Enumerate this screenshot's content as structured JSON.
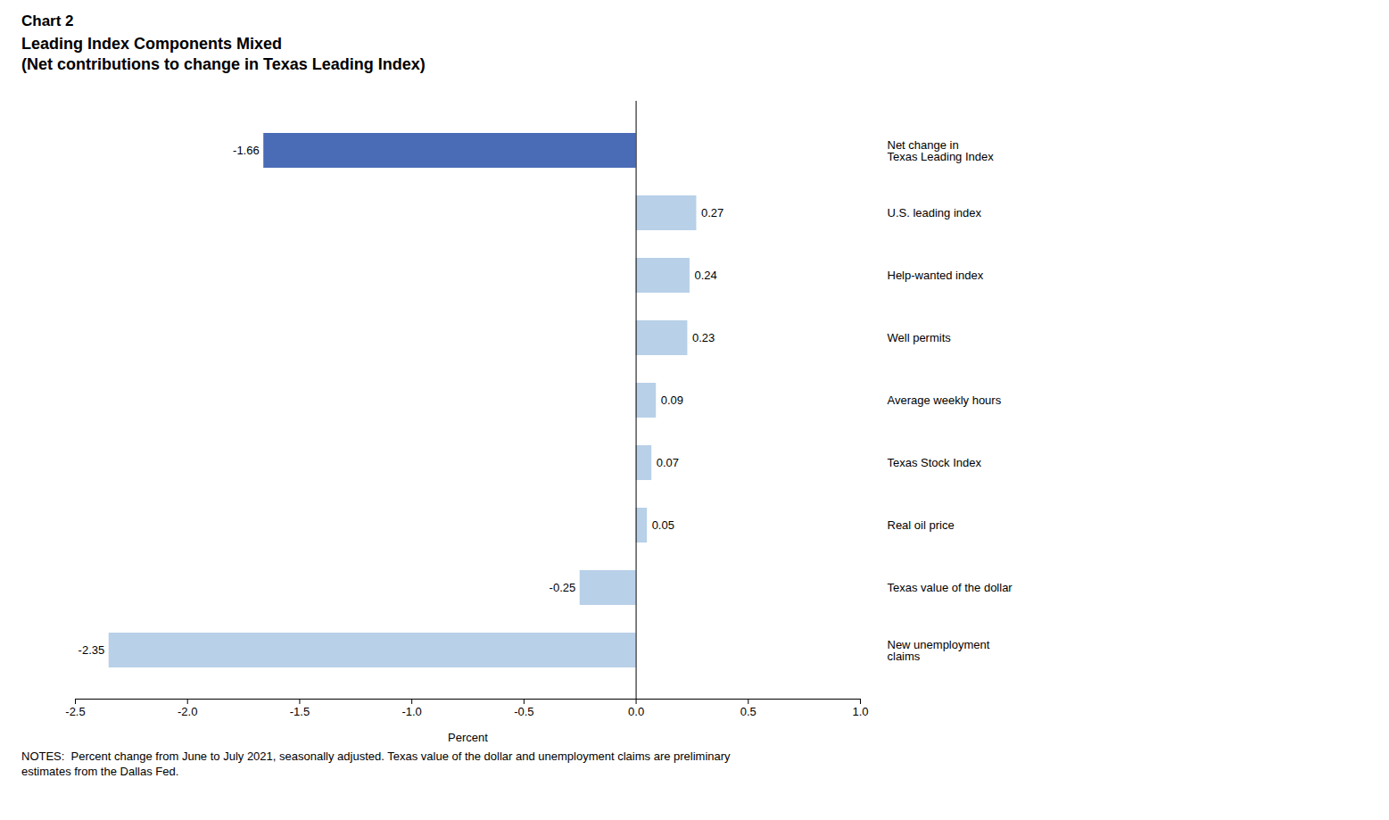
{
  "chart_data": {
    "type": "bar",
    "orientation": "horizontal",
    "title": "Chart 2",
    "subtitle": "Leading Index Components Mixed\n(Net contributions to change in Texas Leading Index)",
    "categories": [
      "Net change in\nTexas Leading Index",
      "U.S. leading index",
      "Help-wanted index",
      "Well permits",
      "Average weekly hours",
      "Texas Stock Index",
      "Real oil price",
      "Texas value of the dollar",
      "New unemployment\nclaims"
    ],
    "values": [
      -1.66,
      0.27,
      0.24,
      0.23,
      0.09,
      0.07,
      0.05,
      -0.25,
      -2.35
    ],
    "colors": [
      "#4a6bb5",
      "#b8d0e8",
      "#b8d0e8",
      "#b8d0e8",
      "#b8d0e8",
      "#b8d0e8",
      "#b8d0e8",
      "#b8d0e8",
      "#b8d0e8"
    ],
    "xlabel": "Percent",
    "xlim": [
      -2.5,
      1.0
    ],
    "xticks": [
      -2.5,
      {
        "value": -2.0,
        "label": "-2.0"
      },
      -1.5,
      {
        "value": -1.0,
        "label": "-1.0"
      },
      -0.5,
      {
        "value": 0.0,
        "label": "0.0"
      },
      0.5,
      {
        "value": 1.0,
        "label": "1.0"
      }
    ],
    "grid": false,
    "data_labels": true,
    "annotations": [
      "NOTES:  Percent change from June to July 2021, seasonally adjusted. Texas value of the dollar and unemployment claims are preliminary\nestimates from the Dallas Fed."
    ]
  }
}
